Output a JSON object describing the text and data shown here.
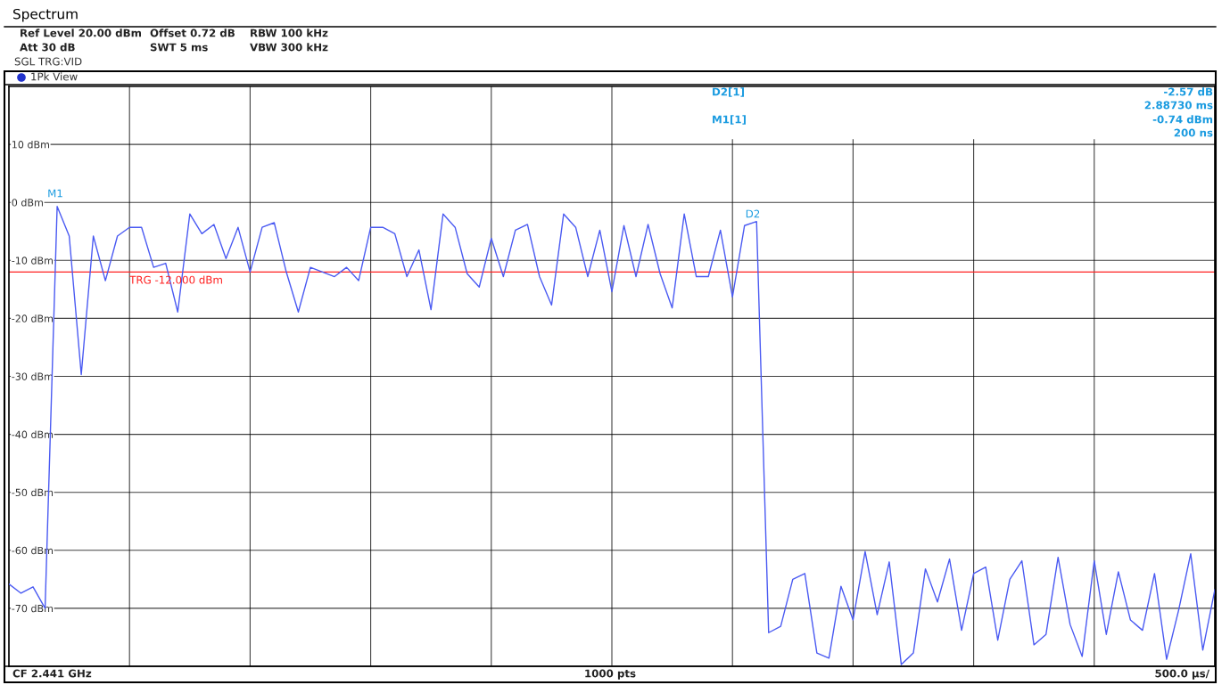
{
  "chart_data": {
    "type": "line",
    "title": "Spectrum",
    "categories": [
      null,
      null,
      null,
      null,
      null,
      null,
      null,
      null,
      null,
      null,
      null,
      null,
      null,
      null,
      null,
      null,
      null,
      null,
      null,
      null,
      null,
      null,
      null,
      null,
      null,
      null,
      null,
      null,
      null,
      null,
      null,
      null,
      null,
      null,
      null,
      null,
      null,
      null,
      null,
      null,
      null,
      null,
      null,
      null,
      null,
      null,
      null,
      null,
      null,
      null,
      null,
      null,
      null,
      null,
      null,
      null,
      null,
      null,
      null,
      null,
      null,
      null,
      null,
      null,
      null,
      null,
      null,
      null,
      null,
      null,
      null,
      null,
      null,
      null,
      null,
      null,
      null,
      null,
      null,
      null,
      null,
      null,
      null,
      null,
      null,
      null,
      null,
      null,
      null,
      null,
      null,
      null,
      null,
      null,
      null,
      null,
      null,
      null,
      null,
      null,
      null
    ],
    "series": [
      {
        "color": "#4a5af2",
        "values": [
          -65.8,
          -67.4,
          -66.3,
          -70,
          -0.7,
          -5.8,
          -29.7,
          -5.8,
          -13.5,
          -5.8,
          -4.3,
          -4.3,
          -11.2,
          -10.5,
          -18.9,
          -2,
          -5.4,
          -3.8,
          -9.7,
          -4.3,
          -12,
          -4.3,
          -3.5,
          -12,
          -18.9,
          -11.2,
          -12,
          -12.8,
          -11.2,
          -13.5,
          -4.3,
          -4.3,
          -5.4,
          -12.8,
          -8.2,
          -18.5,
          -2,
          -4.3,
          -12.3,
          -14.6,
          -6.2,
          -12.8,
          -4.8,
          -3.8,
          -12.8,
          -17.7,
          -2,
          -4.3,
          -12.8,
          -4.8,
          -15.4,
          -4,
          -12.8,
          -3.8,
          -12.3,
          -18.2,
          -2,
          -12.8,
          -12.8,
          -4.8,
          -16.3,
          -4,
          -3.3,
          -74.2,
          -73.1,
          -65,
          -64,
          -77.7,
          -78.6,
          -66.2,
          -72,
          -60.2,
          -71.1,
          -62,
          -79.7,
          -77.7,
          -63.2,
          -68.9,
          -61.5,
          -73.8,
          -64,
          -62.9,
          -75.5,
          -65,
          -61.8,
          -76.3,
          -74.5,
          -61.2,
          -72.8,
          -78.3,
          -61.8,
          -74.5,
          -63.7,
          -72,
          -73.8,
          -64,
          -78.8,
          -70.3,
          -60.6,
          -77.2,
          -66.8
        ]
      }
    ],
    "ylim": [
      -80,
      20
    ],
    "yticks": [
      {
        "value": 10,
        "label": "10 dBm"
      },
      {
        "value": 0,
        "label": "0 dBm"
      },
      {
        "value": -10,
        "label": "-10 dBm"
      },
      {
        "value": -20,
        "label": "-20 dBm"
      },
      {
        "value": -30,
        "label": "-30 dBm"
      },
      {
        "value": -40,
        "label": "-40 dBm"
      },
      {
        "value": -50,
        "label": "-50 dBm"
      },
      {
        "value": -60,
        "label": "-60 dBm"
      },
      {
        "value": -70,
        "label": "-70 dBm"
      }
    ],
    "tick_labels": "y",
    "grid": true,
    "marker": "none",
    "line_style": "solid",
    "ref_lines": [
      {
        "axis": "y",
        "value": -12,
        "label": "TRG -12.000 dBm",
        "color": "#ff2020"
      }
    ],
    "annotations": [
      "Ref Level 20.00 dBm",
      "Offset 0.72 dB",
      "RBW 100 kHz",
      "Att 30 dB",
      "SWT 5 ms",
      "VBW 300 kHz",
      "SGL TRG:VID",
      "1Pk View",
      "D2[1]",
      "-2.57 dB",
      "2.88730 ms",
      "M1[1]",
      "-0.74 dBm",
      "200 ns",
      "CF 2.441 GHz",
      "1000 pts",
      "500.0 µs/",
      "M1",
      "D2"
    ]
  }
}
